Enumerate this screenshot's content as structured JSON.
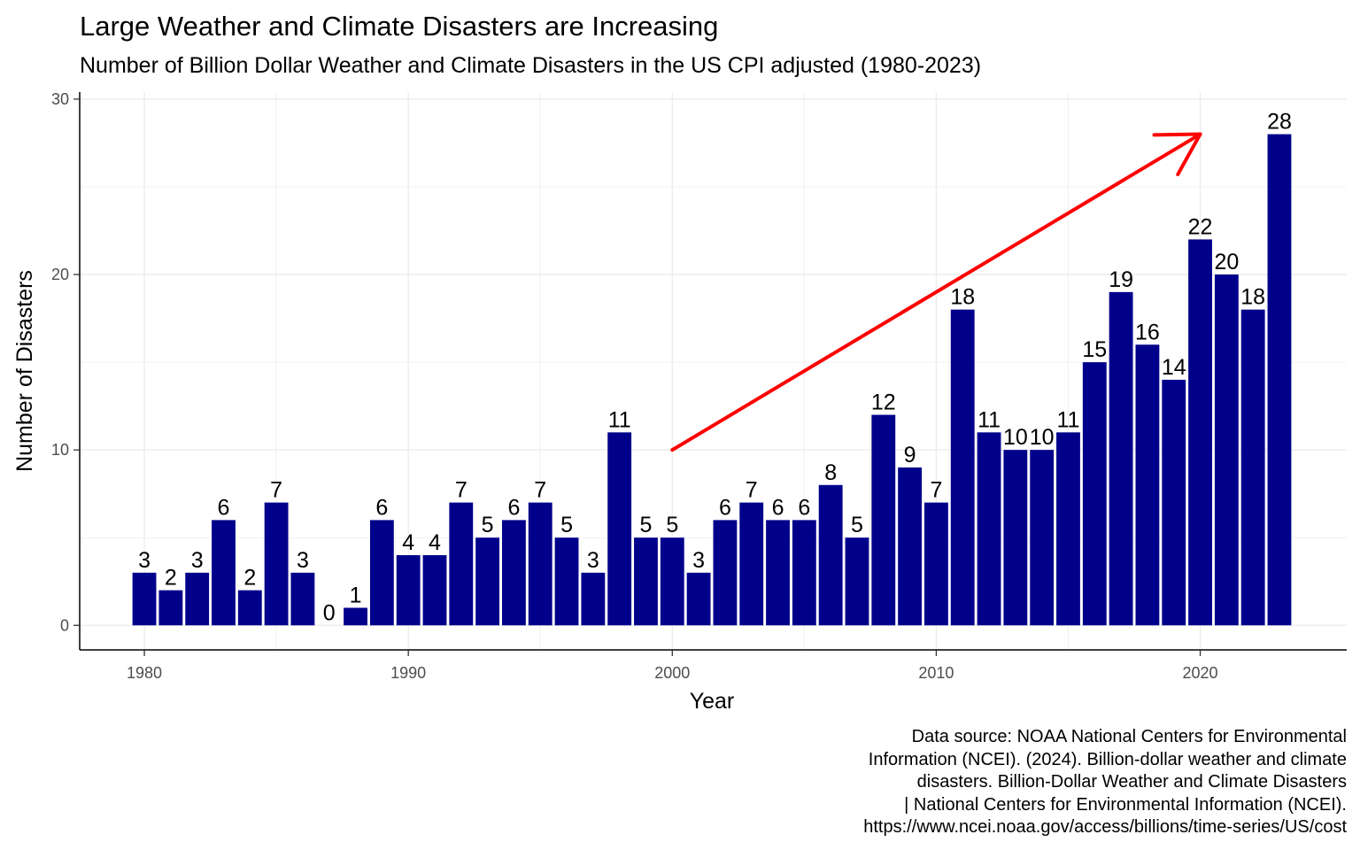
{
  "chart_data": {
    "type": "bar",
    "title": "Large Weather and Climate Disasters are Increasing",
    "subtitle": "Number of Billion Dollar Weather and Climate Disasters in the US CPI adjusted (1980-2023)",
    "xlabel": "Year",
    "ylabel": "Number of Disasters",
    "x": [
      1980,
      1981,
      1982,
      1983,
      1984,
      1985,
      1986,
      1987,
      1988,
      1989,
      1990,
      1991,
      1992,
      1993,
      1994,
      1995,
      1996,
      1997,
      1998,
      1999,
      2000,
      2001,
      2002,
      2003,
      2004,
      2005,
      2006,
      2007,
      2008,
      2009,
      2010,
      2011,
      2012,
      2013,
      2014,
      2015,
      2016,
      2017,
      2018,
      2019,
      2020,
      2021,
      2022,
      2023
    ],
    "values": [
      3,
      2,
      3,
      6,
      2,
      7,
      3,
      0,
      1,
      6,
      4,
      4,
      7,
      5,
      6,
      7,
      5,
      3,
      11,
      5,
      5,
      3,
      6,
      7,
      6,
      6,
      8,
      5,
      12,
      9,
      7,
      18,
      11,
      10,
      10,
      11,
      15,
      19,
      16,
      14,
      22,
      20,
      18,
      28
    ],
    "xlim": [
      1977.55,
      2025.55
    ],
    "ylim": [
      -1.4,
      30.4
    ],
    "x_ticks": [
      1980,
      1990,
      2000,
      2010,
      2020
    ],
    "y_ticks": [
      0,
      10,
      20,
      30
    ],
    "bar_color": "#00008B",
    "grid": true,
    "annotations": [
      {
        "type": "arrow",
        "color": "#FF0000",
        "from": {
          "x": 2000,
          "y": 10
        },
        "to": {
          "x": 2020,
          "y": 28
        }
      }
    ],
    "caption": [
      "Data source: NOAA National Centers for Environmental",
      "Information (NCEI). (2024). Billion-dollar weather and climate",
      "disasters. Billion-Dollar Weather and Climate Disasters",
      "| National Centers for Environmental Information (NCEI).",
      "https://www.ncei.noaa.gov/access/billions/time-series/US/cost"
    ]
  }
}
